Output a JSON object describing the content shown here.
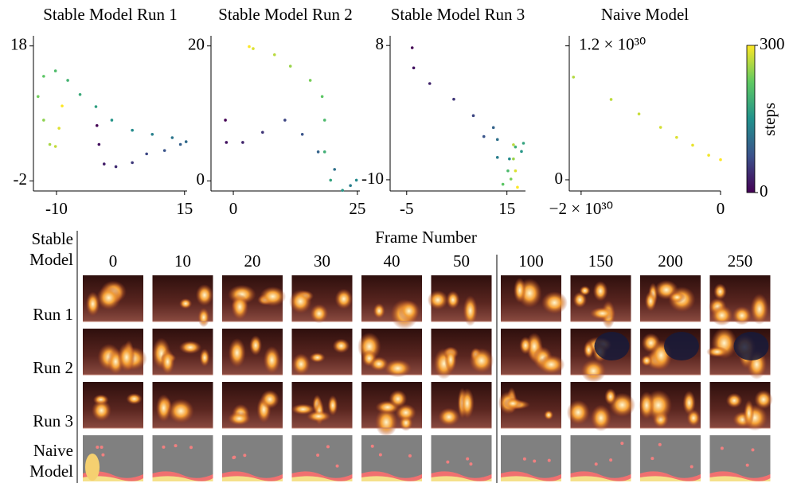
{
  "chart_data": [
    {
      "type": "scatter",
      "title": "Stable Model Run 1",
      "x": [
        -2.1,
        -1.7,
        -0.7,
        1.6,
        4.8,
        7.6,
        11.1,
        14.2,
        15.3,
        12.6,
        8.7,
        4.8,
        0.8,
        -2.3,
        -5.4,
        -7.8,
        -10.2,
        -12.5,
        -13.6,
        -12.5,
        -11.3,
        -10.2,
        -9.5,
        -8.9
      ],
      "values": [
        6.2,
        3.4,
        0.5,
        0.1,
        0.7,
        2.0,
        2.5,
        3.4,
        3.8,
        4.4,
        4.9,
        5.5,
        7.0,
        9.0,
        10.8,
        12.9,
        14.3,
        13.5,
        10.5,
        7.0,
        3.4,
        3.1,
        5.8,
        9.1
      ],
      "steps": [
        0,
        13,
        26,
        39,
        52,
        65,
        78,
        91,
        104,
        117,
        130,
        143,
        156,
        169,
        182,
        195,
        208,
        221,
        234,
        247,
        260,
        273,
        286,
        300
      ],
      "xlim": [
        -14.5,
        15.5
      ],
      "ylim": [
        -3.5,
        19.5
      ],
      "xticks": [
        -10,
        15
      ],
      "yticks": [
        -2,
        18
      ]
    },
    {
      "type": "scatter",
      "title": "Stable Model Run 2",
      "x": [
        -1.6,
        -1.4,
        1.9,
        5.9,
        10.4,
        13.9,
        17.1,
        20.4,
        23.6,
        24.8,
        22.0,
        19.6,
        18.4,
        18.4,
        17.9,
        15.5,
        11.5,
        8.3,
        4.0,
        3.2
      ],
      "values": [
        9.0,
        5.7,
        5.7,
        7.2,
        9.0,
        6.9,
        4.3,
        1.7,
        -0.7,
        0.1,
        -1.4,
        0.1,
        4.3,
        9.0,
        12.5,
        14.9,
        17.0,
        18.7,
        19.6,
        19.9
      ],
      "steps": [
        0,
        16,
        32,
        47,
        63,
        79,
        95,
        111,
        126,
        142,
        158,
        174,
        189,
        205,
        221,
        237,
        253,
        268,
        284,
        300
      ],
      "xlim": [
        -4.5,
        25.5
      ],
      "ylim": [
        -1.5,
        21.5
      ],
      "xticks": [
        0,
        25
      ],
      "yticks": [
        0,
        20
      ]
    },
    {
      "type": "scatter",
      "title": "Stable Model Run 3",
      "x": [
        -3.9,
        -3.6,
        -0.4,
        4.4,
        8.3,
        10.4,
        12.3,
        13.1,
        13.1,
        15.5,
        17.9,
        18.3,
        16.7,
        15.2,
        14.2,
        15.8,
        16.3,
        16.3,
        16.7,
        17.1
      ],
      "values": [
        7.7,
        5.0,
        2.9,
        0.8,
        -1.4,
        -4.2,
        -3.0,
        -4.6,
        -7.0,
        -7.2,
        -6.2,
        -5.1,
        -5.6,
        -8.8,
        -10.6,
        -9.9,
        -7.2,
        -5.3,
        -8.8,
        -11.0
      ],
      "steps": [
        0,
        16,
        32,
        47,
        63,
        79,
        95,
        111,
        126,
        142,
        158,
        174,
        189,
        205,
        221,
        237,
        253,
        268,
        284,
        300
      ],
      "xlim": [
        -8.3,
        18.7
      ],
      "ylim": [
        -11.5,
        9.3
      ],
      "xticks": [
        -5,
        15
      ],
      "yticks": [
        -10,
        8
      ]
    },
    {
      "type": "scatter",
      "title": "Naive Model",
      "x": [
        -2.11e+30,
        -1.57e+30,
        -1.17e+30,
        -8.6e+29,
        -6.3e+29,
        -4e+29,
        -1.7e+29,
        0
      ],
      "values": [
        9.2e+29,
        7.2e+29,
        5.9e+29,
        4.7e+29,
        3.8e+29,
        3.1e+29,
        2.2e+29,
        1.8e+29
      ],
      "steps": [
        265,
        270,
        275,
        280,
        285,
        290,
        295,
        300
      ],
      "xlim": [
        -2.17e+30,
        0
      ],
      "ylim": [
        -1e+29,
        1.29e+30
      ],
      "xticks": [
        {
          "value": -2e+30,
          "label": "−2 × 10³⁰"
        },
        0
      ],
      "yticks": [
        0,
        {
          "value": 1.2e+30,
          "label": "1.2 × 10³⁰"
        }
      ]
    }
  ],
  "colorbar": {
    "label": "steps",
    "lim": [
      0,
      300
    ],
    "ticks": [
      0,
      300
    ],
    "colormap": [
      "#440154",
      "#3b528b",
      "#21918c",
      "#5ec962",
      "#fde725"
    ]
  },
  "frames": {
    "title": "Frame Number",
    "corner": "Stable Model",
    "columns": [
      "0",
      "10",
      "20",
      "30",
      "40",
      "50",
      "100",
      "150",
      "200",
      "250"
    ],
    "rows": [
      "Run 1",
      "Run 2",
      "Run 3",
      "Naive Model"
    ]
  }
}
